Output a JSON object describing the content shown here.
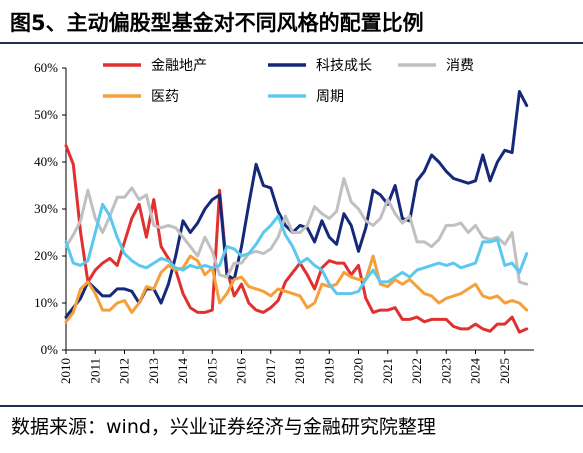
{
  "title": "图5、主动偏股型基金对不同风格的配置比例",
  "source": "数据来源：wind，兴业证券经济与金融研究院整理",
  "chart_data": {
    "type": "line",
    "title": "图5、主动偏股型基金对不同风格的配置比例",
    "xlabel": "",
    "ylabel": "",
    "xlim": [
      2010.0,
      2026.0
    ],
    "ylim": [
      0,
      60
    ],
    "x_ticks": [
      2010,
      2011,
      2012,
      2013,
      2014,
      2015,
      2016,
      2017,
      2018,
      2019,
      2020,
      2021,
      2022,
      2023,
      2024,
      2025
    ],
    "y_ticks": [
      0,
      10,
      20,
      30,
      40,
      50,
      60
    ],
    "y_tick_labels": [
      "0%",
      "10%",
      "20%",
      "30%",
      "40%",
      "50%",
      "60%"
    ],
    "grid": false,
    "legend_position": "top",
    "series": [
      {
        "name": "金融地产",
        "color": "#e03030",
        "x": [
          2010.0,
          2010.25,
          2010.5,
          2010.75,
          2011.0,
          2011.25,
          2011.5,
          2011.75,
          2012.0,
          2012.25,
          2012.5,
          2012.75,
          2013.0,
          2013.25,
          2013.5,
          2013.75,
          2014.0,
          2014.25,
          2014.5,
          2014.75,
          2015.0,
          2015.25,
          2015.5,
          2015.75,
          2016.0,
          2016.25,
          2016.5,
          2016.75,
          2017.0,
          2017.25,
          2017.5,
          2017.75,
          2018.0,
          2018.25,
          2018.5,
          2018.75,
          2019.0,
          2019.25,
          2019.5,
          2019.75,
          2020.0,
          2020.25,
          2020.5,
          2020.75,
          2021.0,
          2021.25,
          2021.5,
          2021.75,
          2022.0,
          2022.25,
          2022.5,
          2022.75,
          2023.0,
          2023.25,
          2023.5,
          2023.75,
          2024.0,
          2024.25,
          2024.5,
          2024.75,
          2025.0,
          2025.25,
          2025.5,
          2025.75
        ],
        "values": [
          43.5,
          39.5,
          25.0,
          14.5,
          17.0,
          18.5,
          19.5,
          18.0,
          23.0,
          28.0,
          31.0,
          24.0,
          32.0,
          22.0,
          19.5,
          17.0,
          12.0,
          9.0,
          8.0,
          8.0,
          8.5,
          34.0,
          17.0,
          11.5,
          14.0,
          10.0,
          8.5,
          8.0,
          9.0,
          10.5,
          14.5,
          16.5,
          18.5,
          16.0,
          13.0,
          17.5,
          19.0,
          18.5,
          18.5,
          16.0,
          18.0,
          11.0,
          8.0,
          8.5,
          8.5,
          9.0,
          6.5,
          6.5,
          7.0,
          6.0,
          6.5,
          6.5,
          6.5,
          5.0,
          4.5,
          4.5,
          5.5,
          4.5,
          4.0,
          5.5,
          5.5,
          7.0,
          3.8,
          4.5
        ]
      },
      {
        "name": "科技成长",
        "color": "#15287a",
        "x": [
          2010.0,
          2010.25,
          2010.5,
          2010.75,
          2011.0,
          2011.25,
          2011.5,
          2011.75,
          2012.0,
          2012.25,
          2012.5,
          2012.75,
          2013.0,
          2013.25,
          2013.5,
          2013.75,
          2014.0,
          2014.25,
          2014.5,
          2014.75,
          2015.0,
          2015.25,
          2015.5,
          2015.75,
          2016.0,
          2016.25,
          2016.5,
          2016.75,
          2017.0,
          2017.25,
          2017.5,
          2017.75,
          2018.0,
          2018.25,
          2018.5,
          2018.75,
          2019.0,
          2019.25,
          2019.5,
          2019.75,
          2020.0,
          2020.25,
          2020.5,
          2020.75,
          2021.0,
          2021.25,
          2021.5,
          2021.75,
          2022.0,
          2022.25,
          2022.5,
          2022.75,
          2023.0,
          2023.25,
          2023.5,
          2023.75,
          2024.0,
          2024.25,
          2024.5,
          2024.75,
          2025.0,
          2025.25,
          2025.5,
          2025.75
        ],
        "values": [
          7.0,
          9.0,
          11.0,
          14.5,
          13.0,
          11.5,
          11.5,
          13.0,
          13.0,
          12.5,
          10.0,
          13.0,
          13.0,
          10.0,
          14.0,
          20.0,
          27.5,
          25.0,
          27.0,
          30.0,
          32.0,
          33.0,
          16.0,
          15.0,
          22.0,
          31.0,
          39.5,
          35.0,
          34.5,
          29.5,
          26.5,
          25.0,
          26.5,
          26.0,
          23.0,
          27.5,
          24.0,
          22.5,
          29.0,
          26.5,
          21.0,
          26.0,
          34.0,
          33.0,
          31.0,
          35.0,
          28.0,
          27.5,
          36.0,
          38.0,
          41.5,
          40.0,
          38.0,
          36.5,
          36.0,
          35.5,
          36.0,
          41.5,
          36.0,
          40.0,
          42.5,
          42.0,
          55.0,
          52.0
        ]
      },
      {
        "name": "消费",
        "color": "#c0c0c0",
        "x": [
          2010.0,
          2010.25,
          2010.5,
          2010.75,
          2011.0,
          2011.25,
          2011.5,
          2011.75,
          2012.0,
          2012.25,
          2012.5,
          2012.75,
          2013.0,
          2013.25,
          2013.5,
          2013.75,
          2014.0,
          2014.25,
          2014.5,
          2014.75,
          2015.0,
          2015.25,
          2015.5,
          2015.75,
          2016.0,
          2016.25,
          2016.5,
          2016.75,
          2017.0,
          2017.25,
          2017.5,
          2017.75,
          2018.0,
          2018.25,
          2018.5,
          2018.75,
          2019.0,
          2019.25,
          2019.5,
          2019.75,
          2020.0,
          2020.25,
          2020.5,
          2020.75,
          2021.0,
          2021.25,
          2021.5,
          2021.75,
          2022.0,
          2022.25,
          2022.5,
          2022.75,
          2023.0,
          2023.25,
          2023.5,
          2023.75,
          2024.0,
          2024.25,
          2024.5,
          2024.75,
          2025.0,
          2025.25,
          2025.5,
          2025.75
        ],
        "values": [
          22.0,
          24.5,
          27.5,
          34.0,
          28.0,
          25.0,
          28.5,
          32.5,
          32.5,
          34.5,
          32.0,
          33.0,
          26.5,
          26.0,
          26.5,
          26.0,
          24.0,
          22.0,
          20.0,
          24.0,
          21.0,
          16.0,
          15.5,
          18.5,
          18.5,
          20.5,
          21.0,
          20.5,
          21.5,
          24.0,
          28.5,
          25.0,
          25.0,
          26.5,
          30.5,
          29.0,
          28.0,
          29.5,
          36.5,
          31.5,
          30.0,
          27.5,
          26.5,
          28.0,
          32.0,
          29.0,
          27.0,
          28.5,
          23.0,
          23.0,
          22.0,
          23.5,
          26.5,
          26.5,
          27.0,
          25.0,
          26.5,
          24.0,
          23.5,
          24.0,
          22.5,
          25.0,
          14.5,
          14.0
        ]
      },
      {
        "name": "医药",
        "color": "#f5a03a",
        "x": [
          2010.0,
          2010.25,
          2010.5,
          2010.75,
          2011.0,
          2011.25,
          2011.5,
          2011.75,
          2012.0,
          2012.25,
          2012.5,
          2012.75,
          2013.0,
          2013.25,
          2013.5,
          2013.75,
          2014.0,
          2014.25,
          2014.5,
          2014.75,
          2015.0,
          2015.25,
          2015.5,
          2015.75,
          2016.0,
          2016.25,
          2016.5,
          2016.75,
          2017.0,
          2017.25,
          2017.5,
          2017.75,
          2018.0,
          2018.25,
          2018.5,
          2018.75,
          2019.0,
          2019.25,
          2019.5,
          2019.75,
          2020.0,
          2020.25,
          2020.5,
          2020.75,
          2021.0,
          2021.25,
          2021.5,
          2021.75,
          2022.0,
          2022.25,
          2022.5,
          2022.75,
          2023.0,
          2023.25,
          2023.5,
          2023.75,
          2024.0,
          2024.25,
          2024.5,
          2024.75,
          2025.0,
          2025.25,
          2025.5,
          2025.75
        ],
        "values": [
          6.0,
          8.0,
          13.0,
          14.5,
          12.0,
          8.5,
          8.5,
          10.0,
          10.5,
          8.0,
          10.0,
          13.5,
          13.0,
          16.5,
          18.0,
          17.0,
          17.5,
          20.0,
          19.0,
          16.0,
          17.5,
          10.0,
          12.0,
          15.0,
          15.5,
          13.5,
          13.0,
          12.5,
          11.5,
          13.0,
          12.5,
          12.0,
          11.5,
          9.0,
          10.0,
          14.0,
          13.5,
          14.0,
          16.5,
          15.5,
          15.0,
          15.0,
          20.0,
          14.0,
          13.5,
          15.0,
          14.0,
          15.0,
          13.5,
          12.0,
          11.5,
          10.0,
          11.0,
          11.5,
          12.0,
          13.0,
          14.0,
          11.5,
          11.0,
          11.5,
          10.0,
          10.5,
          10.0,
          8.5
        ]
      },
      {
        "name": "周期",
        "color": "#5bc8ee",
        "x": [
          2010.0,
          2010.25,
          2010.5,
          2010.75,
          2011.0,
          2011.25,
          2011.5,
          2011.75,
          2012.0,
          2012.25,
          2012.5,
          2012.75,
          2013.0,
          2013.25,
          2013.5,
          2013.75,
          2014.0,
          2014.25,
          2014.5,
          2014.75,
          2015.0,
          2015.25,
          2015.5,
          2015.75,
          2016.0,
          2016.25,
          2016.5,
          2016.75,
          2017.0,
          2017.25,
          2017.5,
          2017.75,
          2018.0,
          2018.25,
          2018.5,
          2018.75,
          2019.0,
          2019.25,
          2019.5,
          2019.75,
          2020.0,
          2020.25,
          2020.5,
          2020.75,
          2021.0,
          2021.25,
          2021.5,
          2021.75,
          2022.0,
          2022.25,
          2022.5,
          2022.75,
          2023.0,
          2023.25,
          2023.5,
          2023.75,
          2024.0,
          2024.25,
          2024.5,
          2024.75,
          2025.0,
          2025.25,
          2025.5,
          2025.75
        ],
        "values": [
          23.0,
          18.5,
          18.0,
          19.0,
          25.0,
          31.0,
          28.5,
          24.0,
          20.5,
          19.0,
          18.0,
          17.5,
          18.5,
          19.5,
          19.0,
          17.5,
          17.0,
          18.0,
          17.5,
          18.0,
          17.5,
          18.0,
          22.0,
          21.5,
          20.0,
          20.5,
          22.5,
          25.0,
          26.5,
          28.5,
          24.5,
          22.0,
          18.5,
          19.5,
          18.0,
          17.0,
          14.0,
          12.0,
          12.0,
          12.0,
          12.5,
          15.0,
          17.0,
          14.5,
          14.5,
          15.5,
          16.5,
          15.5,
          17.0,
          17.5,
          18.0,
          18.5,
          18.0,
          18.5,
          17.5,
          18.0,
          18.5,
          23.0,
          23.0,
          23.5,
          18.0,
          18.5,
          16.5,
          20.5
        ]
      }
    ]
  }
}
